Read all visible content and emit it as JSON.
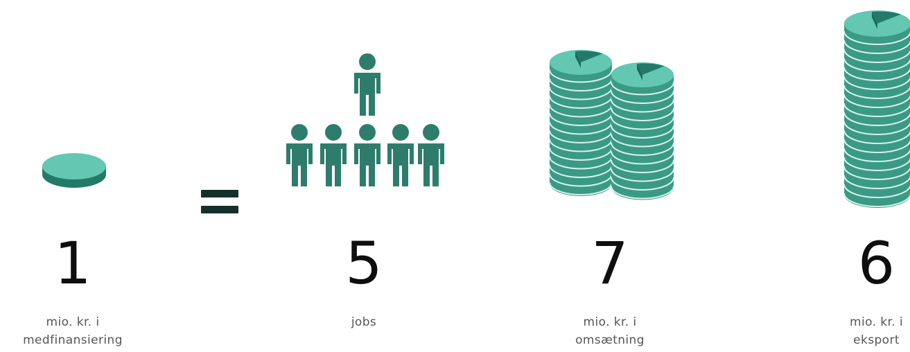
{
  "colors": {
    "teal": "#3a9a86",
    "teal_dark": "#237a69",
    "teal_top": "#63c7b2",
    "person": "#2e7d6c",
    "equals": "#14302a"
  },
  "items": [
    {
      "icon": "single-coin-icon",
      "number": "1",
      "line1": "mio. kr. i",
      "line2": "medfinansiering"
    },
    {
      "icon": "people-jobs-icon",
      "number": "5",
      "line1": "jobs",
      "line2": ""
    },
    {
      "icon": "coin-stacks-icon",
      "number": "7",
      "line1": "mio. kr. i",
      "line2": "omsætning"
    },
    {
      "icon": "coin-stack-icon",
      "number": "6",
      "line1": "mio. kr. i",
      "line2": "eksport"
    }
  ],
  "equals_icon": "equals-icon"
}
